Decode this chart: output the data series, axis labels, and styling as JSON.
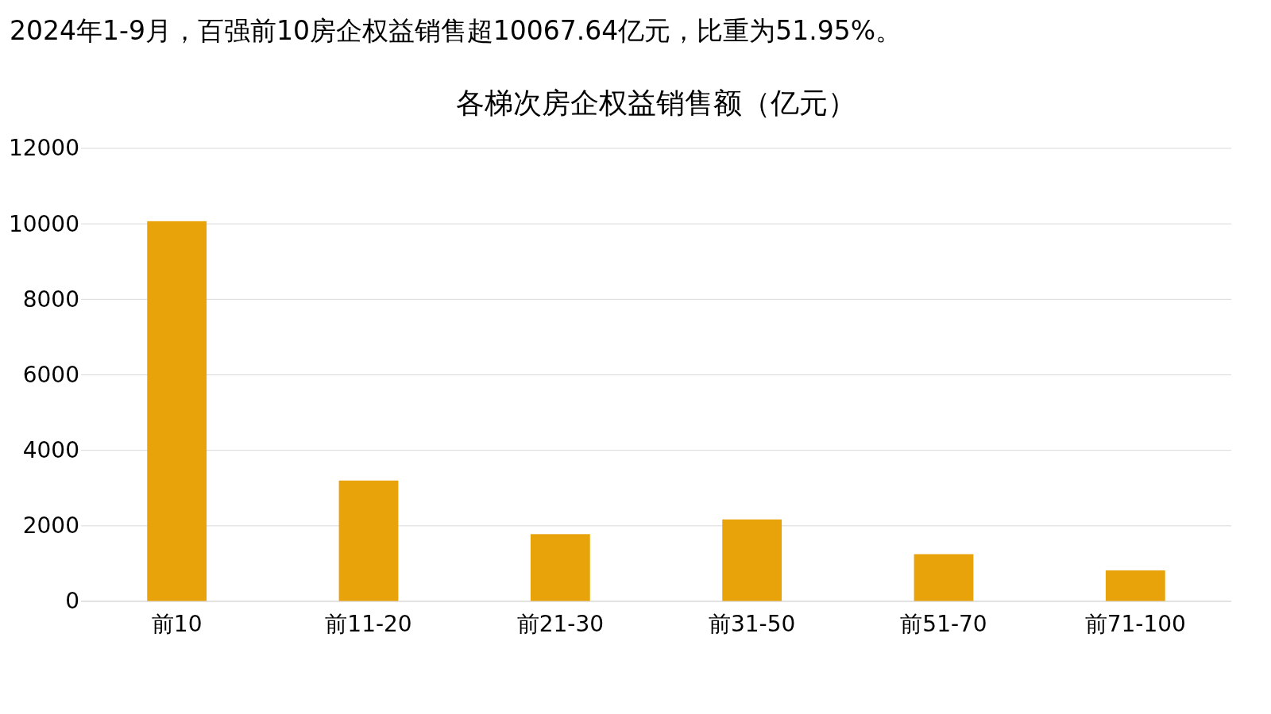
{
  "chart_data": {
    "type": "bar",
    "title": "2024年1-9月，百强前10房企权益销售超10067.64亿元，比重为51.95%。",
    "subtitle": "各梯次房企权益销售额（亿元）",
    "categories": [
      "前10",
      "前11-20",
      "前21-30",
      "前31-50",
      "前51-70",
      "前71-100"
    ],
    "values": [
      10070,
      3200,
      1780,
      2170,
      1250,
      820
    ],
    "color": "#e8a20a",
    "ylim": [
      0,
      12000
    ],
    "yticks": [
      0,
      2000,
      4000,
      6000,
      8000,
      10000,
      12000
    ],
    "grid": "y"
  }
}
